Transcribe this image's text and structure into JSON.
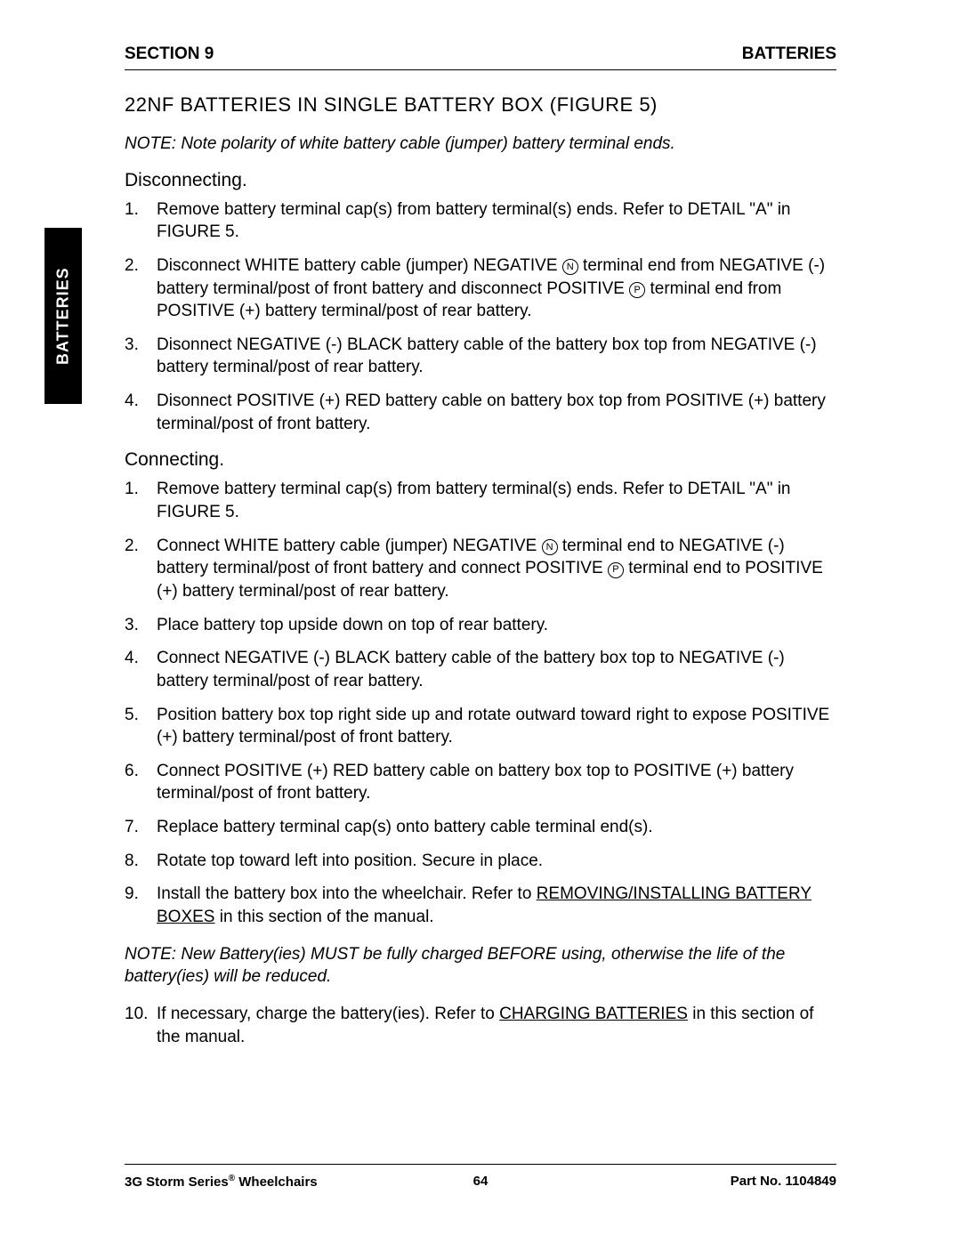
{
  "header": {
    "section_label": "SECTION 9",
    "chapter_label": "BATTERIES"
  },
  "side_tab": "BATTERIES",
  "main_heading": "22NF BATTERIES IN SINGLE BATTERY BOX (FIGURE 5)",
  "note_top": "NOTE: Note polarity of white battery cable (jumper) battery terminal ends.",
  "disconnecting": {
    "heading": "Disconnecting.",
    "items": [
      {
        "parts": [
          {
            "t": "Remove battery terminal cap(s) from battery terminal(s) ends. Refer to DETAIL \"A\" in FIGURE 5."
          }
        ]
      },
      {
        "parts": [
          {
            "t": "Disconnect WHITE battery cable (jumper) NEGATIVE "
          },
          {
            "c": "N"
          },
          {
            "t": " terminal end from NEGATIVE (-) battery terminal/post of front battery and disconnect POSITIVE "
          },
          {
            "c": "P"
          },
          {
            "t": " terminal end from POSITIVE (+) battery terminal/post of rear battery."
          }
        ]
      },
      {
        "parts": [
          {
            "t": "Disonnect NEGATIVE (-) BLACK battery cable of the battery box top from NEGATIVE (-) battery terminal/post of rear battery."
          }
        ]
      },
      {
        "parts": [
          {
            "t": "Disonnect POSITIVE (+) RED battery cable on battery box top from POSITIVE (+) battery terminal/post of front battery."
          }
        ]
      }
    ]
  },
  "connecting": {
    "heading": "Connecting.",
    "items": [
      {
        "parts": [
          {
            "t": "Remove battery terminal cap(s) from battery terminal(s) ends. Refer to DETAIL \"A\" in FIGURE 5."
          }
        ]
      },
      {
        "parts": [
          {
            "t": "Connect WHITE battery cable (jumper) NEGATIVE "
          },
          {
            "c": "N"
          },
          {
            "t": " terminal end to NEGATIVE (-) battery terminal/post of front battery and connect POSITIVE "
          },
          {
            "c": "P"
          },
          {
            "t": " terminal end to POSITIVE (+) battery terminal/post of rear battery."
          }
        ]
      },
      {
        "parts": [
          {
            "t": "Place battery top upside down on top of rear battery."
          }
        ]
      },
      {
        "parts": [
          {
            "t": "Connect NEGATIVE (-) BLACK battery cable of the battery box top to NEGATIVE (-) battery terminal/post of rear battery."
          }
        ]
      },
      {
        "parts": [
          {
            "t": "Position battery box top right side up and rotate outward toward right to expose POSITIVE (+) battery terminal/post of front battery."
          }
        ]
      },
      {
        "parts": [
          {
            "t": "Connect POSITIVE (+) RED battery cable on battery box top to POSITIVE (+) battery terminal/post of front battery."
          }
        ]
      },
      {
        "parts": [
          {
            "t": "Replace battery terminal cap(s) onto battery cable terminal end(s)."
          }
        ]
      },
      {
        "parts": [
          {
            "t": "Rotate top toward left into position. Secure in place."
          }
        ]
      },
      {
        "parts": [
          {
            "t": "Install the battery box into the wheelchair. Refer to "
          },
          {
            "u": "REMOVING/INSTALLING BATTERY BOXES"
          },
          {
            "t": " in this section of the manual."
          }
        ]
      }
    ],
    "items_after_note": [
      {
        "parts": [
          {
            "t": "If necessary, charge the battery(ies). Refer to "
          },
          {
            "u": "CHARGING BATTERIES"
          },
          {
            "t": " in this section of the manual."
          }
        ]
      }
    ]
  },
  "note_mid": "NOTE: New Battery(ies) MUST be fully charged BEFORE using, otherwise the life of the battery(ies) will be reduced.",
  "footer": {
    "left_prefix": "3G Storm Series",
    "left_suffix": " Wheelchairs",
    "reg": "®",
    "page_number": "64",
    "right": "Part No. 1104849"
  }
}
